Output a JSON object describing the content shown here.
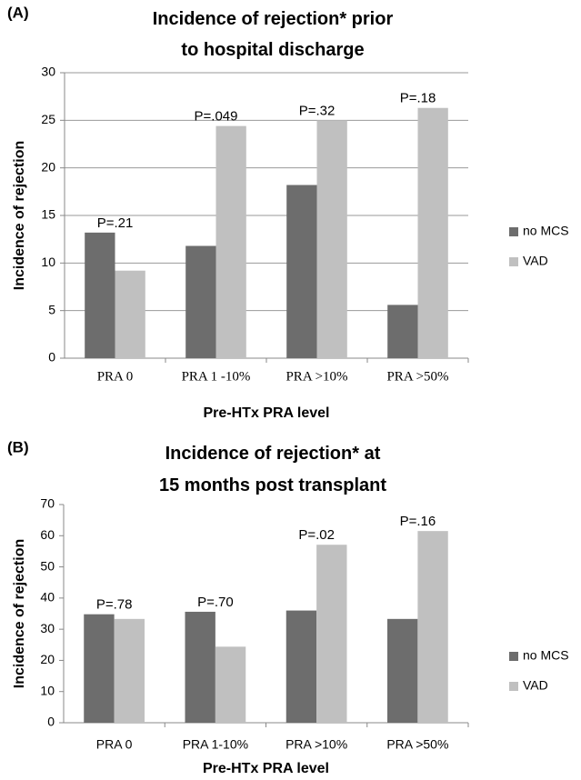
{
  "chart_data": [
    {
      "type": "bar",
      "panel_label": "(A)",
      "title": "Incidence of rejection* prior to hospital discharge",
      "x_label": "Pre-HTx PRA level",
      "y_label": "Incidence of rejection",
      "categories": [
        "PRA 0",
        "PRA 1 -10%",
        "PRA >10%",
        "PRA >50%"
      ],
      "series": [
        {
          "name": "no MCS",
          "color": "#6d6d6d",
          "values": [
            13.2,
            11.8,
            18.2,
            5.6
          ]
        },
        {
          "name": "VAD",
          "color": "#c0c0c0",
          "values": [
            9.2,
            24.4,
            25.0,
            26.3
          ]
        }
      ],
      "annotations": [
        "P=.21",
        "P=.049",
        "P=.32",
        "P=.18"
      ],
      "ylim": [
        0,
        30
      ],
      "yticks": [
        0,
        5,
        10,
        15,
        20,
        25,
        30
      ],
      "grid": true,
      "legend": "right"
    },
    {
      "type": "bar",
      "panel_label": "(B)",
      "title": "Incidence of rejection* at 15 months post transplant",
      "x_label": "Pre-HTx PRA level",
      "y_label": "Incidence of rejection",
      "categories": [
        "PRA 0",
        "PRA 1-10%",
        "PRA >10%",
        "PRA >50%"
      ],
      "series": [
        {
          "name": "no MCS",
          "color": "#6d6d6d",
          "values": [
            34.8,
            35.6,
            36.0,
            33.3
          ]
        },
        {
          "name": "VAD",
          "color": "#c0c0c0",
          "values": [
            33.3,
            24.4,
            57.1,
            61.5
          ]
        }
      ],
      "annotations": [
        "P=.78",
        "P=.70",
        "P=.02",
        "P=.16"
      ],
      "ylim": [
        0,
        70
      ],
      "yticks": [
        0,
        10,
        20,
        30,
        40,
        50,
        60,
        70
      ],
      "grid": false,
      "legend": "right"
    }
  ]
}
